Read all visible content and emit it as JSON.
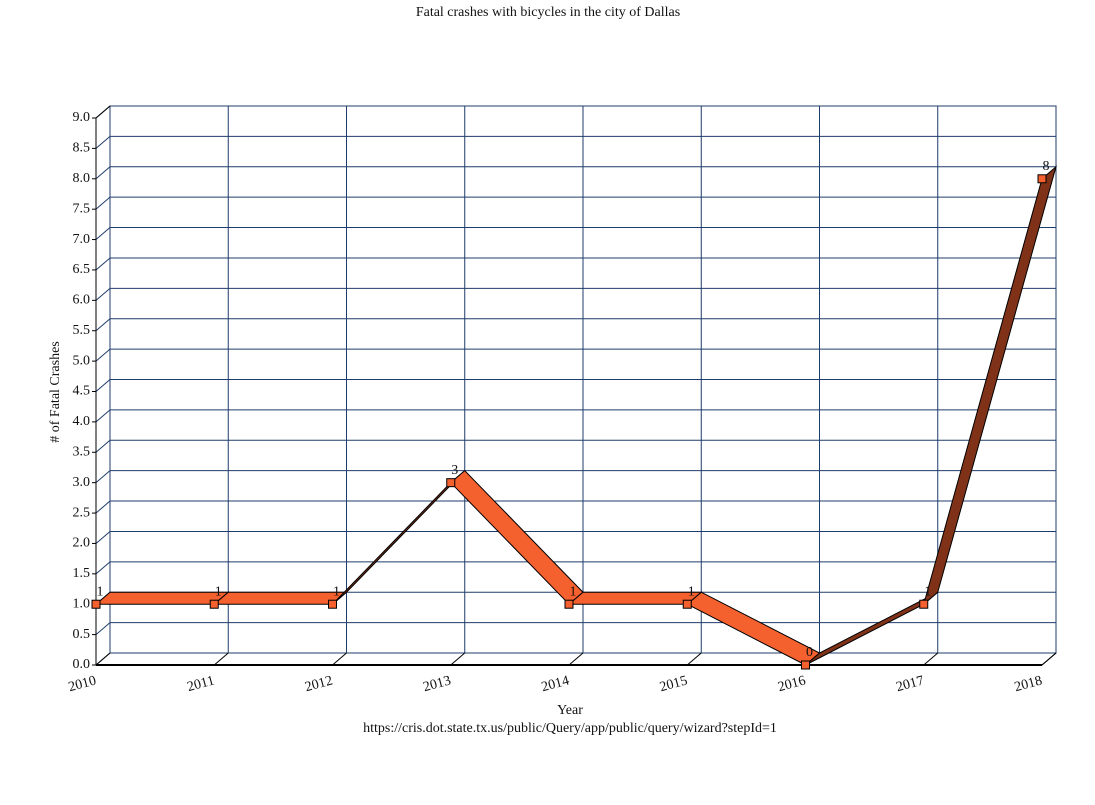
{
  "chart_data": {
    "type": "line",
    "title": "Fatal crashes with bicycles in the city of Dallas",
    "x_label": "Year",
    "y_label": "# of Fatal Crashes",
    "source": "https://cris.dot.state.tx.us/public/Query/app/public/query/wizard?stepId=1",
    "categories": [
      "2010",
      "2011",
      "2012",
      "2013",
      "2014",
      "2015",
      "2016",
      "2017",
      "2018"
    ],
    "values": [
      1,
      1,
      1,
      3,
      1,
      1,
      0,
      1,
      8
    ],
    "color": "#f4602e",
    "ylim": [
      0,
      9
    ],
    "yticks": [
      {
        "value": 0,
        "label": "0.0"
      },
      {
        "value": 0.5,
        "label": "0.5"
      },
      {
        "value": 1,
        "label": "1.0"
      },
      {
        "value": 1.5,
        "label": "1.5"
      },
      {
        "value": 2,
        "label": "2.0"
      },
      {
        "value": 2.5,
        "label": "2.5"
      },
      {
        "value": 3,
        "label": "3.0"
      },
      {
        "value": 3.5,
        "label": "3.5"
      },
      {
        "value": 4,
        "label": "4.0"
      },
      {
        "value": 4.5,
        "label": "4.5"
      },
      {
        "value": 5,
        "label": "5.0"
      },
      {
        "value": 5.5,
        "label": "5.5"
      },
      {
        "value": 6,
        "label": "6.0"
      },
      {
        "value": 6.5,
        "label": "6.5"
      },
      {
        "value": 7,
        "label": "7.0"
      },
      {
        "value": 7.5,
        "label": "7.5"
      },
      {
        "value": 8,
        "label": "8.0"
      },
      {
        "value": 8.5,
        "label": "8.5"
      },
      {
        "value": 9,
        "label": "9.0"
      }
    ],
    "grid": true
  }
}
